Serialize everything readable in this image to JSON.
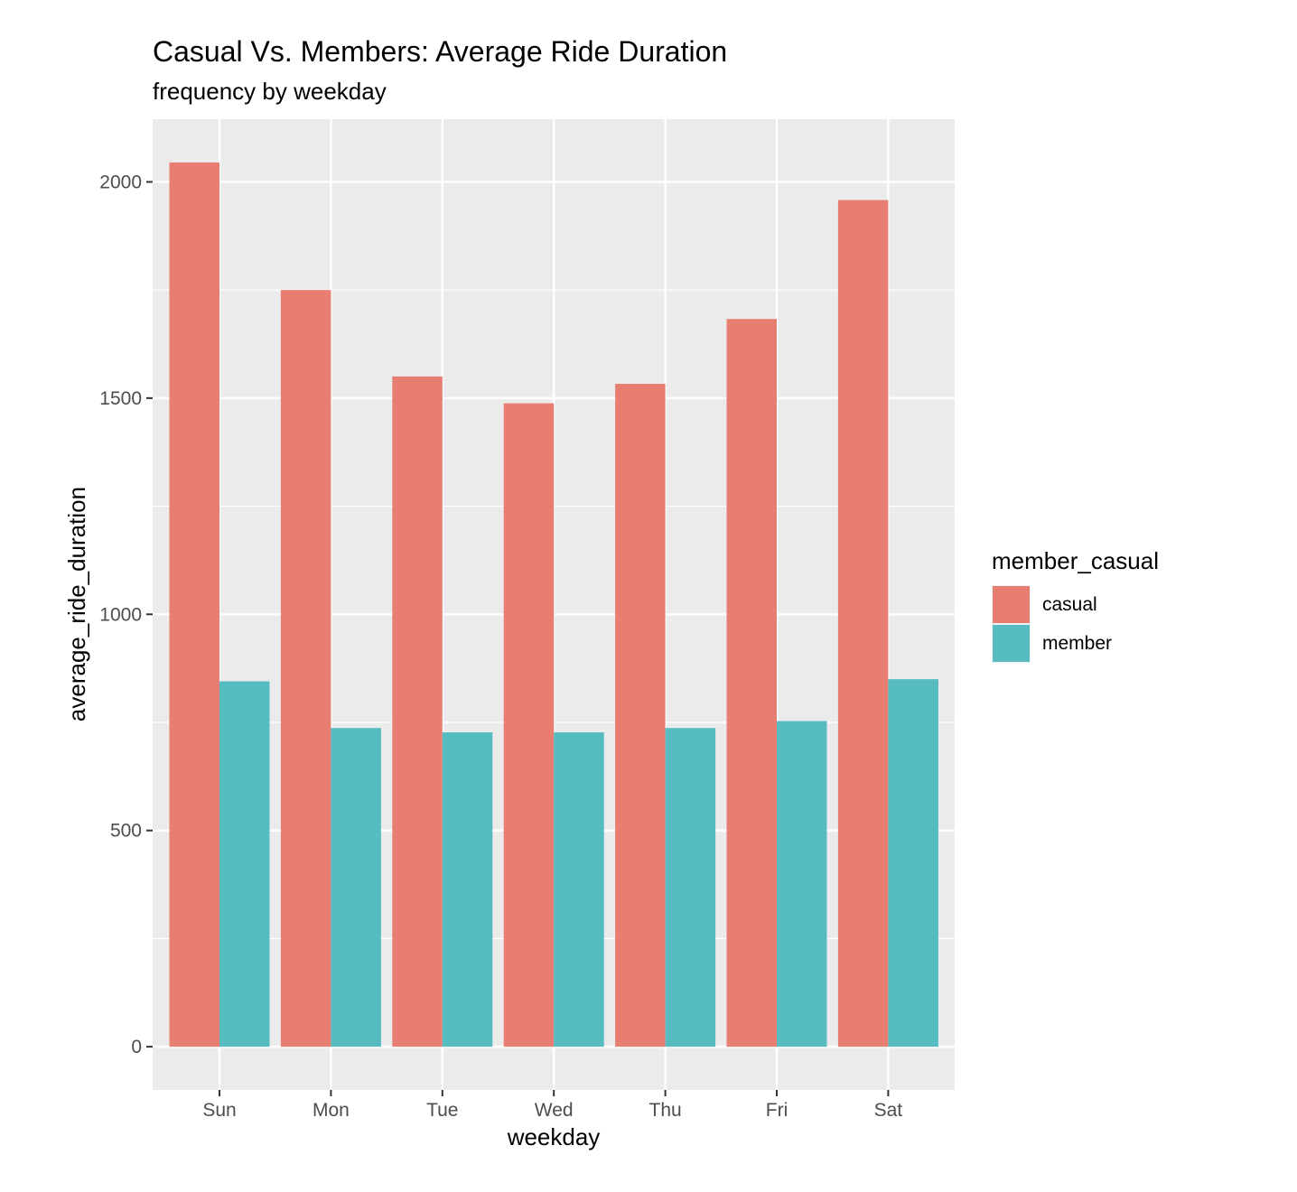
{
  "chart_data": {
    "type": "bar",
    "title": "Casual Vs. Members: Average Ride Duration",
    "subtitle": "frequency by weekday",
    "xlabel": "weekday",
    "ylabel": "average_ride_duration",
    "categories": [
      "Sun",
      "Mon",
      "Tue",
      "Wed",
      "Thu",
      "Fri",
      "Sat"
    ],
    "series": [
      {
        "name": "casual",
        "color": "#e87e72",
        "values": [
          2045,
          1750,
          1550,
          1488,
          1533,
          1683,
          1958
        ]
      },
      {
        "name": "member",
        "color": "#56bcc2",
        "values": [
          845,
          737,
          727,
          727,
          737,
          753,
          850
        ]
      }
    ],
    "ylim": [
      -100,
      2145
    ],
    "yticks": [
      0,
      500,
      1000,
      1500,
      2000
    ],
    "ytick_labels": [
      "0",
      "500",
      "1000",
      "1500",
      "2000"
    ],
    "yminor": [
      250,
      750,
      1250,
      1750
    ],
    "grid": true,
    "legend": {
      "title": "member_casual",
      "position": "right",
      "entries": [
        "casual",
        "member"
      ]
    },
    "panel_background": "#ebebeb",
    "grid_color": "#ffffff"
  }
}
